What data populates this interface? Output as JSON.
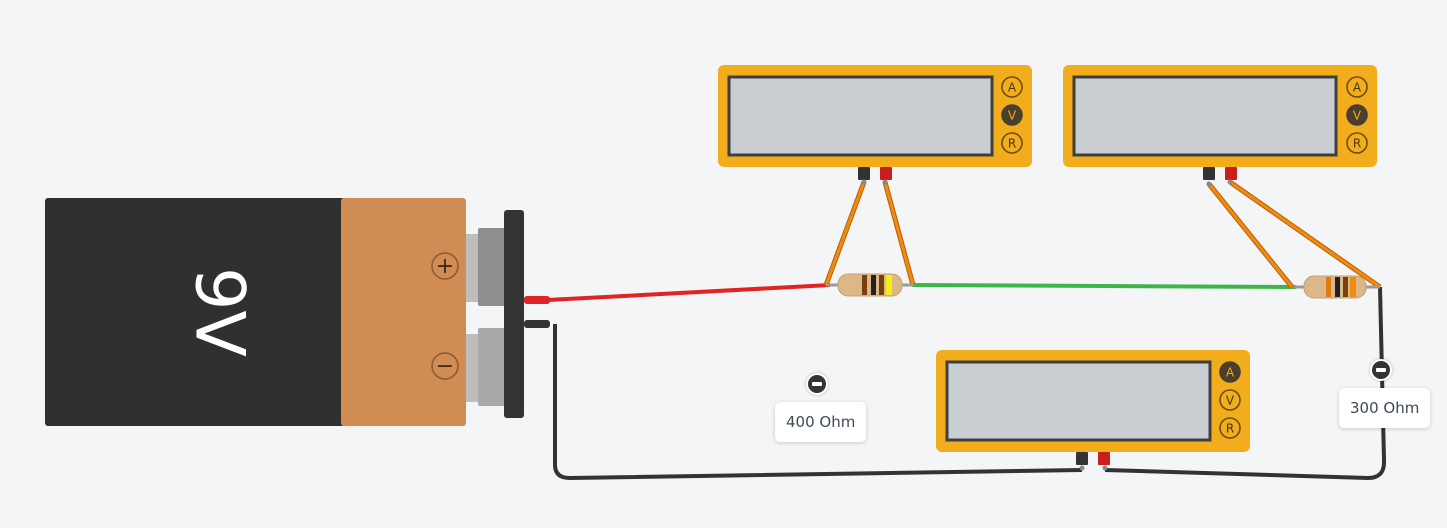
{
  "battery": {
    "label": "9V",
    "plus_symbol": "+",
    "minus_symbol": "−"
  },
  "meters": [
    {
      "modes": [
        "A",
        "V",
        "R"
      ],
      "active": "V"
    },
    {
      "modes": [
        "A",
        "V",
        "R"
      ],
      "active": "V"
    },
    {
      "modes": [
        "A",
        "V",
        "R"
      ],
      "active": "A"
    }
  ],
  "resistors": [
    {
      "value_label": "400 Ohm"
    },
    {
      "value_label": "300 Ohm"
    }
  ],
  "colors": {
    "background": "#f3f5f7",
    "meter_body": "#f1ad1c",
    "meter_screen": "#c8ced1",
    "battery_body": "#303030",
    "battery_cap": "#d08c52",
    "wire_red": "#e02424",
    "wire_green": "#3eb54a",
    "wire_black": "#333333",
    "probe_wire": "#f08a12"
  }
}
